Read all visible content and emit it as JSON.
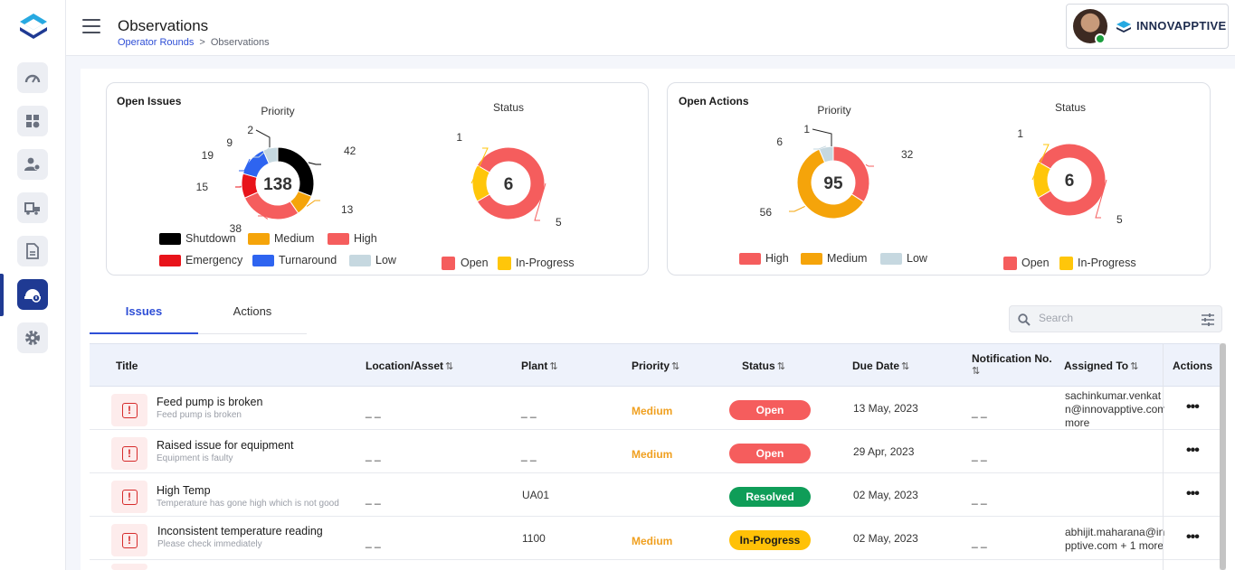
{
  "header": {
    "title": "Observations",
    "breadcrumb": {
      "parent": "Operator Rounds",
      "separator": ">",
      "current": "Observations"
    },
    "brand": "INNOVAPPTIVE"
  },
  "sidebar": {
    "items": [
      {
        "name": "dashboard-icon"
      },
      {
        "name": "apps-settings-icon"
      },
      {
        "name": "user-settings-icon"
      },
      {
        "name": "equipment-icon"
      },
      {
        "name": "document-icon"
      },
      {
        "name": "observations-icon",
        "active": true
      },
      {
        "name": "gear-icon"
      }
    ]
  },
  "open_issues": {
    "title": "Open Issues",
    "priority": {
      "label": "Priority",
      "total": "138",
      "legend": [
        "Shutdown",
        "Medium",
        "High",
        "Emergency",
        "Turnaround",
        "Low"
      ]
    },
    "status": {
      "label": "Status",
      "total": "6",
      "legend": [
        "Open",
        "In-Progress"
      ]
    }
  },
  "open_actions": {
    "title": "Open Actions",
    "priority": {
      "label": "Priority",
      "total": "95",
      "legend": [
        "High",
        "Medium",
        "Low"
      ]
    },
    "status": {
      "label": "Status",
      "total": "6",
      "legend": [
        "Open",
        "In-Progress"
      ]
    }
  },
  "chart_data": [
    {
      "type": "pie",
      "title": "Priority",
      "categories": [
        "Shutdown",
        "Medium",
        "High",
        "Emergency",
        "Turnaround",
        "Low"
      ],
      "values": [
        42,
        13,
        38,
        15,
        19,
        9
      ],
      "colors": [
        "#000000",
        "#f5a40a",
        "#f55d5d",
        "#e8131a",
        "#2e64f0",
        "#c6d8e0"
      ],
      "center_label": "138",
      "extra_labels": [
        "2"
      ]
    },
    {
      "type": "pie",
      "title": "Status",
      "categories": [
        "Open",
        "In-Progress"
      ],
      "values": [
        5,
        1
      ],
      "colors": [
        "#f55d5d",
        "#ffc60a"
      ],
      "center_label": "6"
    },
    {
      "type": "pie",
      "title": "Priority",
      "categories": [
        "High",
        "Medium",
        "Low"
      ],
      "values": [
        32,
        56,
        6
      ],
      "colors": [
        "#f55d5d",
        "#f5a40a",
        "#c6d8e0"
      ],
      "center_label": "95",
      "extra_labels": [
        "1"
      ]
    },
    {
      "type": "pie",
      "title": "Status",
      "categories": [
        "Open",
        "In-Progress"
      ],
      "values": [
        5,
        1
      ],
      "colors": [
        "#f55d5d",
        "#ffc60a"
      ],
      "center_label": "6"
    }
  ],
  "tabs": [
    {
      "label": "Issues",
      "active": true
    },
    {
      "label": "Actions",
      "active": false
    }
  ],
  "search": {
    "placeholder": "Search"
  },
  "table": {
    "columns": [
      "Title",
      "Location/Asset",
      "Plant",
      "Priority",
      "Status",
      "Due Date",
      "Notification No.",
      "Assigned To",
      "Actions"
    ],
    "sort_glyph": "⇅",
    "rows": [
      {
        "title": "Feed pump is broken",
        "subtitle": "Feed pump is broken",
        "location": "_ _",
        "plant": "_ _",
        "priority": "Medium",
        "status": "Open",
        "due": "13 May, 2023",
        "notification": "_ _",
        "assigned_lines": [
          "sachinkumar.venkat",
          "n@innovapptive.com",
          "more"
        ]
      },
      {
        "title": "Raised issue for equipment",
        "subtitle": "Equipment is faulty",
        "location": "_ _",
        "plant": "_ _",
        "priority": "Medium",
        "status": "Open",
        "due": "29 Apr, 2023",
        "notification": "_ _",
        "assigned_lines": []
      },
      {
        "title": "High Temp",
        "subtitle": "Temperature has gone high which is not good",
        "location": "_ _",
        "plant": "UA01",
        "priority": "",
        "status": "Resolved",
        "due": "02 May, 2023",
        "notification": "_ _",
        "assigned_lines": []
      },
      {
        "title": "Inconsistent temperature reading",
        "subtitle": "Please check immediately",
        "location": "_ _",
        "plant": "1100",
        "priority": "Medium",
        "status": "In-Progress",
        "due": "02 May, 2023",
        "notification": "_ _",
        "assigned_lines": [
          "abhijit.maharana@in",
          "pptive.com + 1 more"
        ]
      }
    ],
    "actions_glyph": "•••"
  }
}
